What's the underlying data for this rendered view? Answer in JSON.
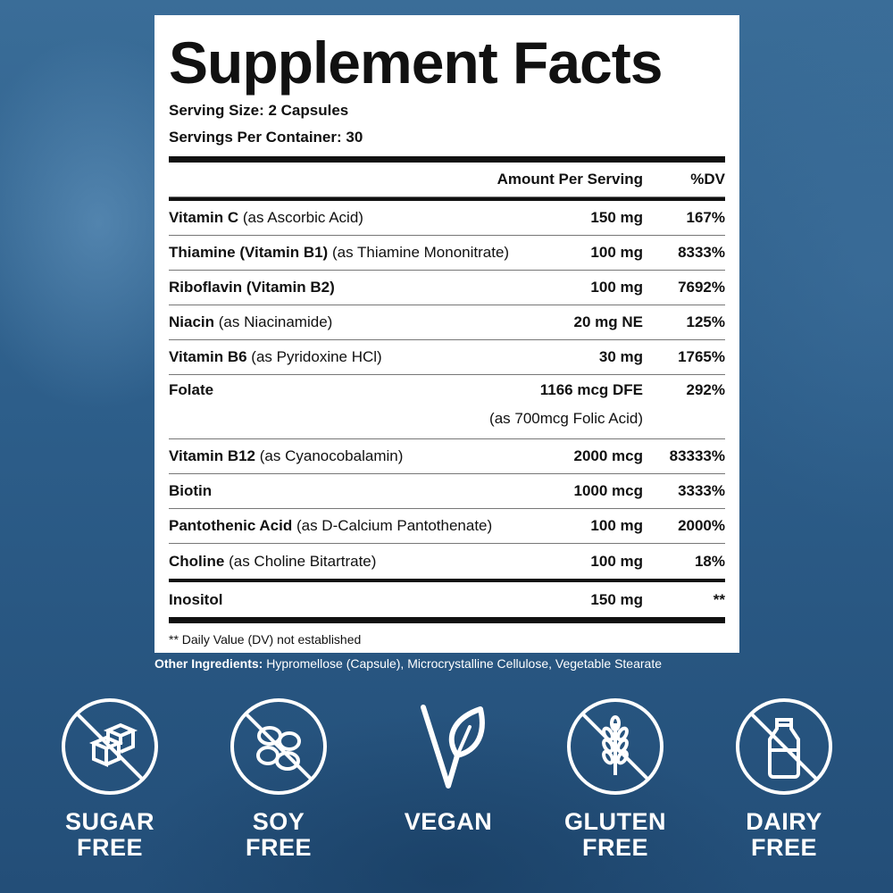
{
  "panel": {
    "title": "Supplement Facts",
    "serving_size": "Serving Size: 2 Capsules",
    "servings_per_container": "Servings Per Container: 30",
    "header": {
      "amount": "Amount Per Serving",
      "dv": "%DV"
    },
    "rows": [
      {
        "name": "Vitamin C",
        "detail": "(as Ascorbic Acid)",
        "amount": "150 mg",
        "dv": "167%"
      },
      {
        "name": "Thiamine (Vitamin B1)",
        "detail": "(as Thiamine Mononitrate)",
        "amount": "100 mg",
        "dv": "8333%"
      },
      {
        "name": "Riboflavin (Vitamin B2)",
        "detail": "",
        "amount": "100 mg",
        "dv": "7692%"
      },
      {
        "name": "Niacin",
        "detail": "(as Niacinamide)",
        "amount": "20 mg NE",
        "dv": "125%"
      },
      {
        "name": "Vitamin B6",
        "detail": "(as Pyridoxine HCl)",
        "amount": "30 mg",
        "dv": "1765%"
      },
      {
        "name": "Folate",
        "detail": "(as 700mcg Folic Acid)",
        "amount": "1166 mcg DFE",
        "dv": "292%"
      },
      {
        "name": "Vitamin B12",
        "detail": "(as Cyanocobalamin)",
        "amount": "2000 mcg",
        "dv": "83333%"
      },
      {
        "name": "Biotin",
        "detail": "",
        "amount": "1000 mcg",
        "dv": "3333%"
      },
      {
        "name": "Pantothenic Acid",
        "detail": "(as D-Calcium Pantothenate)",
        "amount": "100 mg",
        "dv": "2000%"
      },
      {
        "name": "Choline",
        "detail": "(as Choline Bitartrate)",
        "amount": "100 mg",
        "dv": "18%"
      },
      {
        "name": "Inositol",
        "detail": "",
        "amount": "150 mg",
        "dv": "**"
      }
    ],
    "footnote": "** Daily Value (DV) not established"
  },
  "other_ingredients": {
    "label": "Other Ingredients:",
    "text": " Hypromellose (Capsule), Microcrystalline Cellulose, Vegetable Stearate"
  },
  "badges": [
    {
      "line1": "SUGAR",
      "line2": "FREE",
      "icon": "sugar-cube-icon"
    },
    {
      "line1": "SOY",
      "line2": "FREE",
      "icon": "soybean-icon"
    },
    {
      "line1": "VEGAN",
      "line2": "",
      "icon": "vegan-leaf-icon"
    },
    {
      "line1": "GLUTEN",
      "line2": "FREE",
      "icon": "wheat-icon"
    },
    {
      "line1": "DAIRY",
      "line2": "FREE",
      "icon": "milk-bottle-icon"
    }
  ],
  "colors": {
    "background": "#2f5f8a",
    "panel": "#ffffff",
    "text": "#111111"
  }
}
